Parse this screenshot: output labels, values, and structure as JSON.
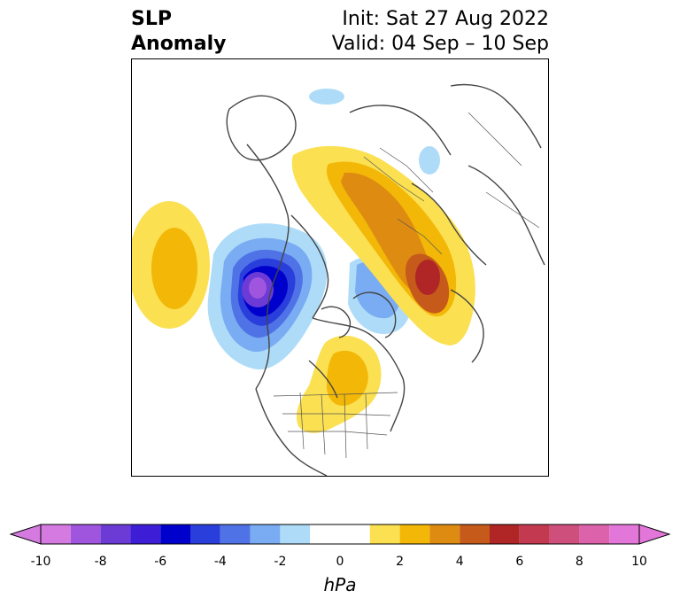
{
  "title": {
    "left_line1": "SLP",
    "left_line2": "Anomaly",
    "init": "Init: Sat 27 Aug 2022",
    "valid": "Valid: 04 Sep – 10 Sep"
  },
  "colorbar": {
    "units": "hPa",
    "ticks": [
      "-10",
      "-8",
      "-6",
      "-4",
      "-2",
      "0",
      "2",
      "4",
      "6",
      "8",
      "10"
    ],
    "bins": [
      {
        "from": -10,
        "to": -9,
        "color": "#d47ae0"
      },
      {
        "from": -9,
        "to": -8,
        "color": "#9f55dd"
      },
      {
        "from": -8,
        "to": -7,
        "color": "#6c3bd6"
      },
      {
        "from": -7,
        "to": -6,
        "color": "#3d1ed6"
      },
      {
        "from": -6,
        "to": -5,
        "color": "#0000cc"
      },
      {
        "from": -5,
        "to": -4,
        "color": "#2a3edc"
      },
      {
        "from": -4,
        "to": -3,
        "color": "#4f72e6"
      },
      {
        "from": -3,
        "to": -2,
        "color": "#79acf2"
      },
      {
        "from": -2,
        "to": -1,
        "color": "#aedcf8"
      },
      {
        "from": -1,
        "to": 1,
        "color": "#ffffff"
      },
      {
        "from": 1,
        "to": 2,
        "color": "#fbe052"
      },
      {
        "from": 2,
        "to": 3,
        "color": "#f2b707"
      },
      {
        "from": 3,
        "to": 4,
        "color": "#de8b12"
      },
      {
        "from": 4,
        "to": 5,
        "color": "#c55a1a"
      },
      {
        "from": 5,
        "to": 6,
        "color": "#b02626"
      },
      {
        "from": 6,
        "to": 7,
        "color": "#c33a50"
      },
      {
        "from": 7,
        "to": 8,
        "color": "#cf4f7c"
      },
      {
        "from": 8,
        "to": 9,
        "color": "#db62ab"
      },
      {
        "from": 9,
        "to": 10,
        "color": "#e276d9"
      }
    ],
    "under_color": "#d47ae0",
    "over_color": "#e276d9"
  }
}
